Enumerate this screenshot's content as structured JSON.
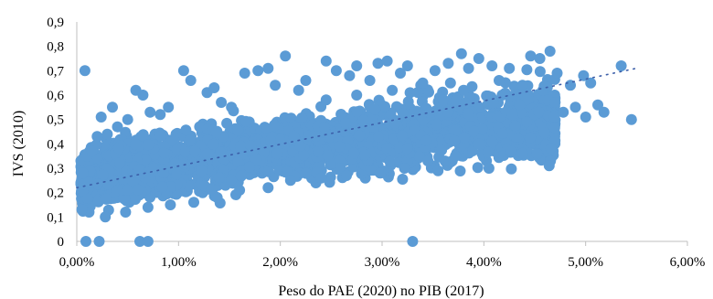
{
  "chart_data": {
    "type": "scatter",
    "title": "",
    "xlabel": "Peso do PAE (2020) no PIB (2017)",
    "ylabel": "IVS (2010)",
    "xlim": [
      0,
      0.06
    ],
    "ylim": [
      0,
      0.9
    ],
    "x_ticks": [
      0,
      0.01,
      0.02,
      0.03,
      0.04,
      0.05,
      0.06
    ],
    "x_tick_labels": [
      "0,00%",
      "1,00%",
      "2,00%",
      "3,00%",
      "4,00%",
      "5,00%",
      "6,00%"
    ],
    "y_ticks": [
      0,
      0.1,
      0.2,
      0.3,
      0.4,
      0.5,
      0.6,
      0.7,
      0.8,
      0.9
    ],
    "y_tick_labels": [
      "0",
      "0,1",
      "0,2",
      "0,3",
      "0,4",
      "0,5",
      "0,6",
      "0,7",
      "0,8",
      "0,9"
    ],
    "grid": false,
    "legend": "none",
    "marker_color": "#5b9bd5",
    "trendline": {
      "type": "linear",
      "style": "dotted",
      "color": "#3b5ea8",
      "x": [
        0.0,
        0.055
      ],
      "y": [
        0.22,
        0.71
      ]
    },
    "series": [
      {
        "points": [
          [
            0.0008,
            0.7
          ],
          [
            0.0009,
            0.0
          ],
          [
            0.0022,
            0.0
          ],
          [
            0.0062,
            0.0
          ],
          [
            0.007,
            0.0
          ],
          [
            0.033,
            0.0
          ],
          [
            0.0024,
            0.51
          ],
          [
            0.0035,
            0.55
          ],
          [
            0.0058,
            0.62
          ],
          [
            0.0065,
            0.6
          ],
          [
            0.0082,
            0.52
          ],
          [
            0.0105,
            0.7
          ],
          [
            0.0112,
            0.66
          ],
          [
            0.0128,
            0.61
          ],
          [
            0.0135,
            0.63
          ],
          [
            0.0142,
            0.57
          ],
          [
            0.0152,
            0.55
          ],
          [
            0.0165,
            0.69
          ],
          [
            0.0178,
            0.7
          ],
          [
            0.0188,
            0.71
          ],
          [
            0.0195,
            0.64
          ],
          [
            0.0205,
            0.76
          ],
          [
            0.0218,
            0.62
          ],
          [
            0.0225,
            0.66
          ],
          [
            0.0235,
            0.24
          ],
          [
            0.0245,
            0.74
          ],
          [
            0.0255,
            0.7
          ],
          [
            0.0268,
            0.68
          ],
          [
            0.0275,
            0.72
          ],
          [
            0.0288,
            0.66
          ],
          [
            0.0296,
            0.73
          ],
          [
            0.0305,
            0.74
          ],
          [
            0.0318,
            0.69
          ],
          [
            0.0325,
            0.72
          ],
          [
            0.0338,
            0.64
          ],
          [
            0.0352,
            0.7
          ],
          [
            0.0365,
            0.73
          ],
          [
            0.0378,
            0.77
          ],
          [
            0.0385,
            0.71
          ],
          [
            0.0395,
            0.75
          ],
          [
            0.0408,
            0.72
          ],
          [
            0.0418,
            0.6
          ],
          [
            0.0425,
            0.71
          ],
          [
            0.0438,
            0.64
          ],
          [
            0.0446,
            0.76
          ],
          [
            0.0455,
            0.75
          ],
          [
            0.0465,
            0.78
          ],
          [
            0.0472,
            0.69
          ],
          [
            0.0405,
            0.3
          ],
          [
            0.0428,
            0.52
          ],
          [
            0.0442,
            0.49
          ],
          [
            0.0452,
            0.36
          ],
          [
            0.0463,
            0.58
          ],
          [
            0.0478,
            0.53
          ],
          [
            0.0485,
            0.64
          ],
          [
            0.0498,
            0.68
          ],
          [
            0.0505,
            0.65
          ],
          [
            0.0512,
            0.56
          ],
          [
            0.0518,
            0.53
          ],
          [
            0.0535,
            0.72
          ],
          [
            0.0545,
            0.5
          ],
          [
            0.0395,
            0.4
          ],
          [
            0.0372,
            0.35
          ],
          [
            0.0345,
            0.33
          ],
          [
            0.0355,
            0.29
          ],
          [
            0.0322,
            0.3
          ],
          [
            0.0298,
            0.28
          ],
          [
            0.0265,
            0.27
          ],
          [
            0.024,
            0.26
          ],
          [
            0.021,
            0.25
          ],
          [
            0.0188,
            0.22
          ],
          [
            0.016,
            0.21
          ],
          [
            0.0138,
            0.18
          ],
          [
            0.0115,
            0.16
          ],
          [
            0.0092,
            0.15
          ],
          [
            0.007,
            0.14
          ],
          [
            0.0048,
            0.12
          ],
          [
            0.0028,
            0.1
          ],
          [
            0.0012,
            0.12
          ],
          [
            0.0005,
            0.13
          ],
          [
            0.0006,
            0.28
          ],
          [
            0.001,
            0.35
          ],
          [
            0.0015,
            0.37
          ],
          [
            0.002,
            0.43
          ],
          [
            0.003,
            0.44
          ],
          [
            0.004,
            0.47
          ],
          [
            0.005,
            0.5
          ],
          [
            0.0072,
            0.53
          ],
          [
            0.009,
            0.55
          ],
          [
            0.0245,
            0.58
          ],
          [
            0.0275,
            0.6
          ],
          [
            0.031,
            0.62
          ],
          [
            0.034,
            0.65
          ],
          [
            0.036,
            0.58
          ],
          [
            0.038,
            0.62
          ],
          [
            0.0415,
            0.66
          ],
          [
            0.0435,
            0.56
          ],
          [
            0.0458,
            0.62
          ],
          [
            0.047,
            0.57
          ],
          [
            0.049,
            0.55
          ],
          [
            0.05,
            0.51
          ]
        ]
      }
    ],
    "cloud": {
      "seed": 7,
      "count": 2600,
      "x_range": [
        0.0004,
        0.047
      ],
      "x_shape": 0.62,
      "center": {
        "intercept": 0.255,
        "slope": 6.8,
        "curve": -35
      },
      "spread": {
        "intercept": 0.11,
        "slope": 1.5
      }
    }
  }
}
